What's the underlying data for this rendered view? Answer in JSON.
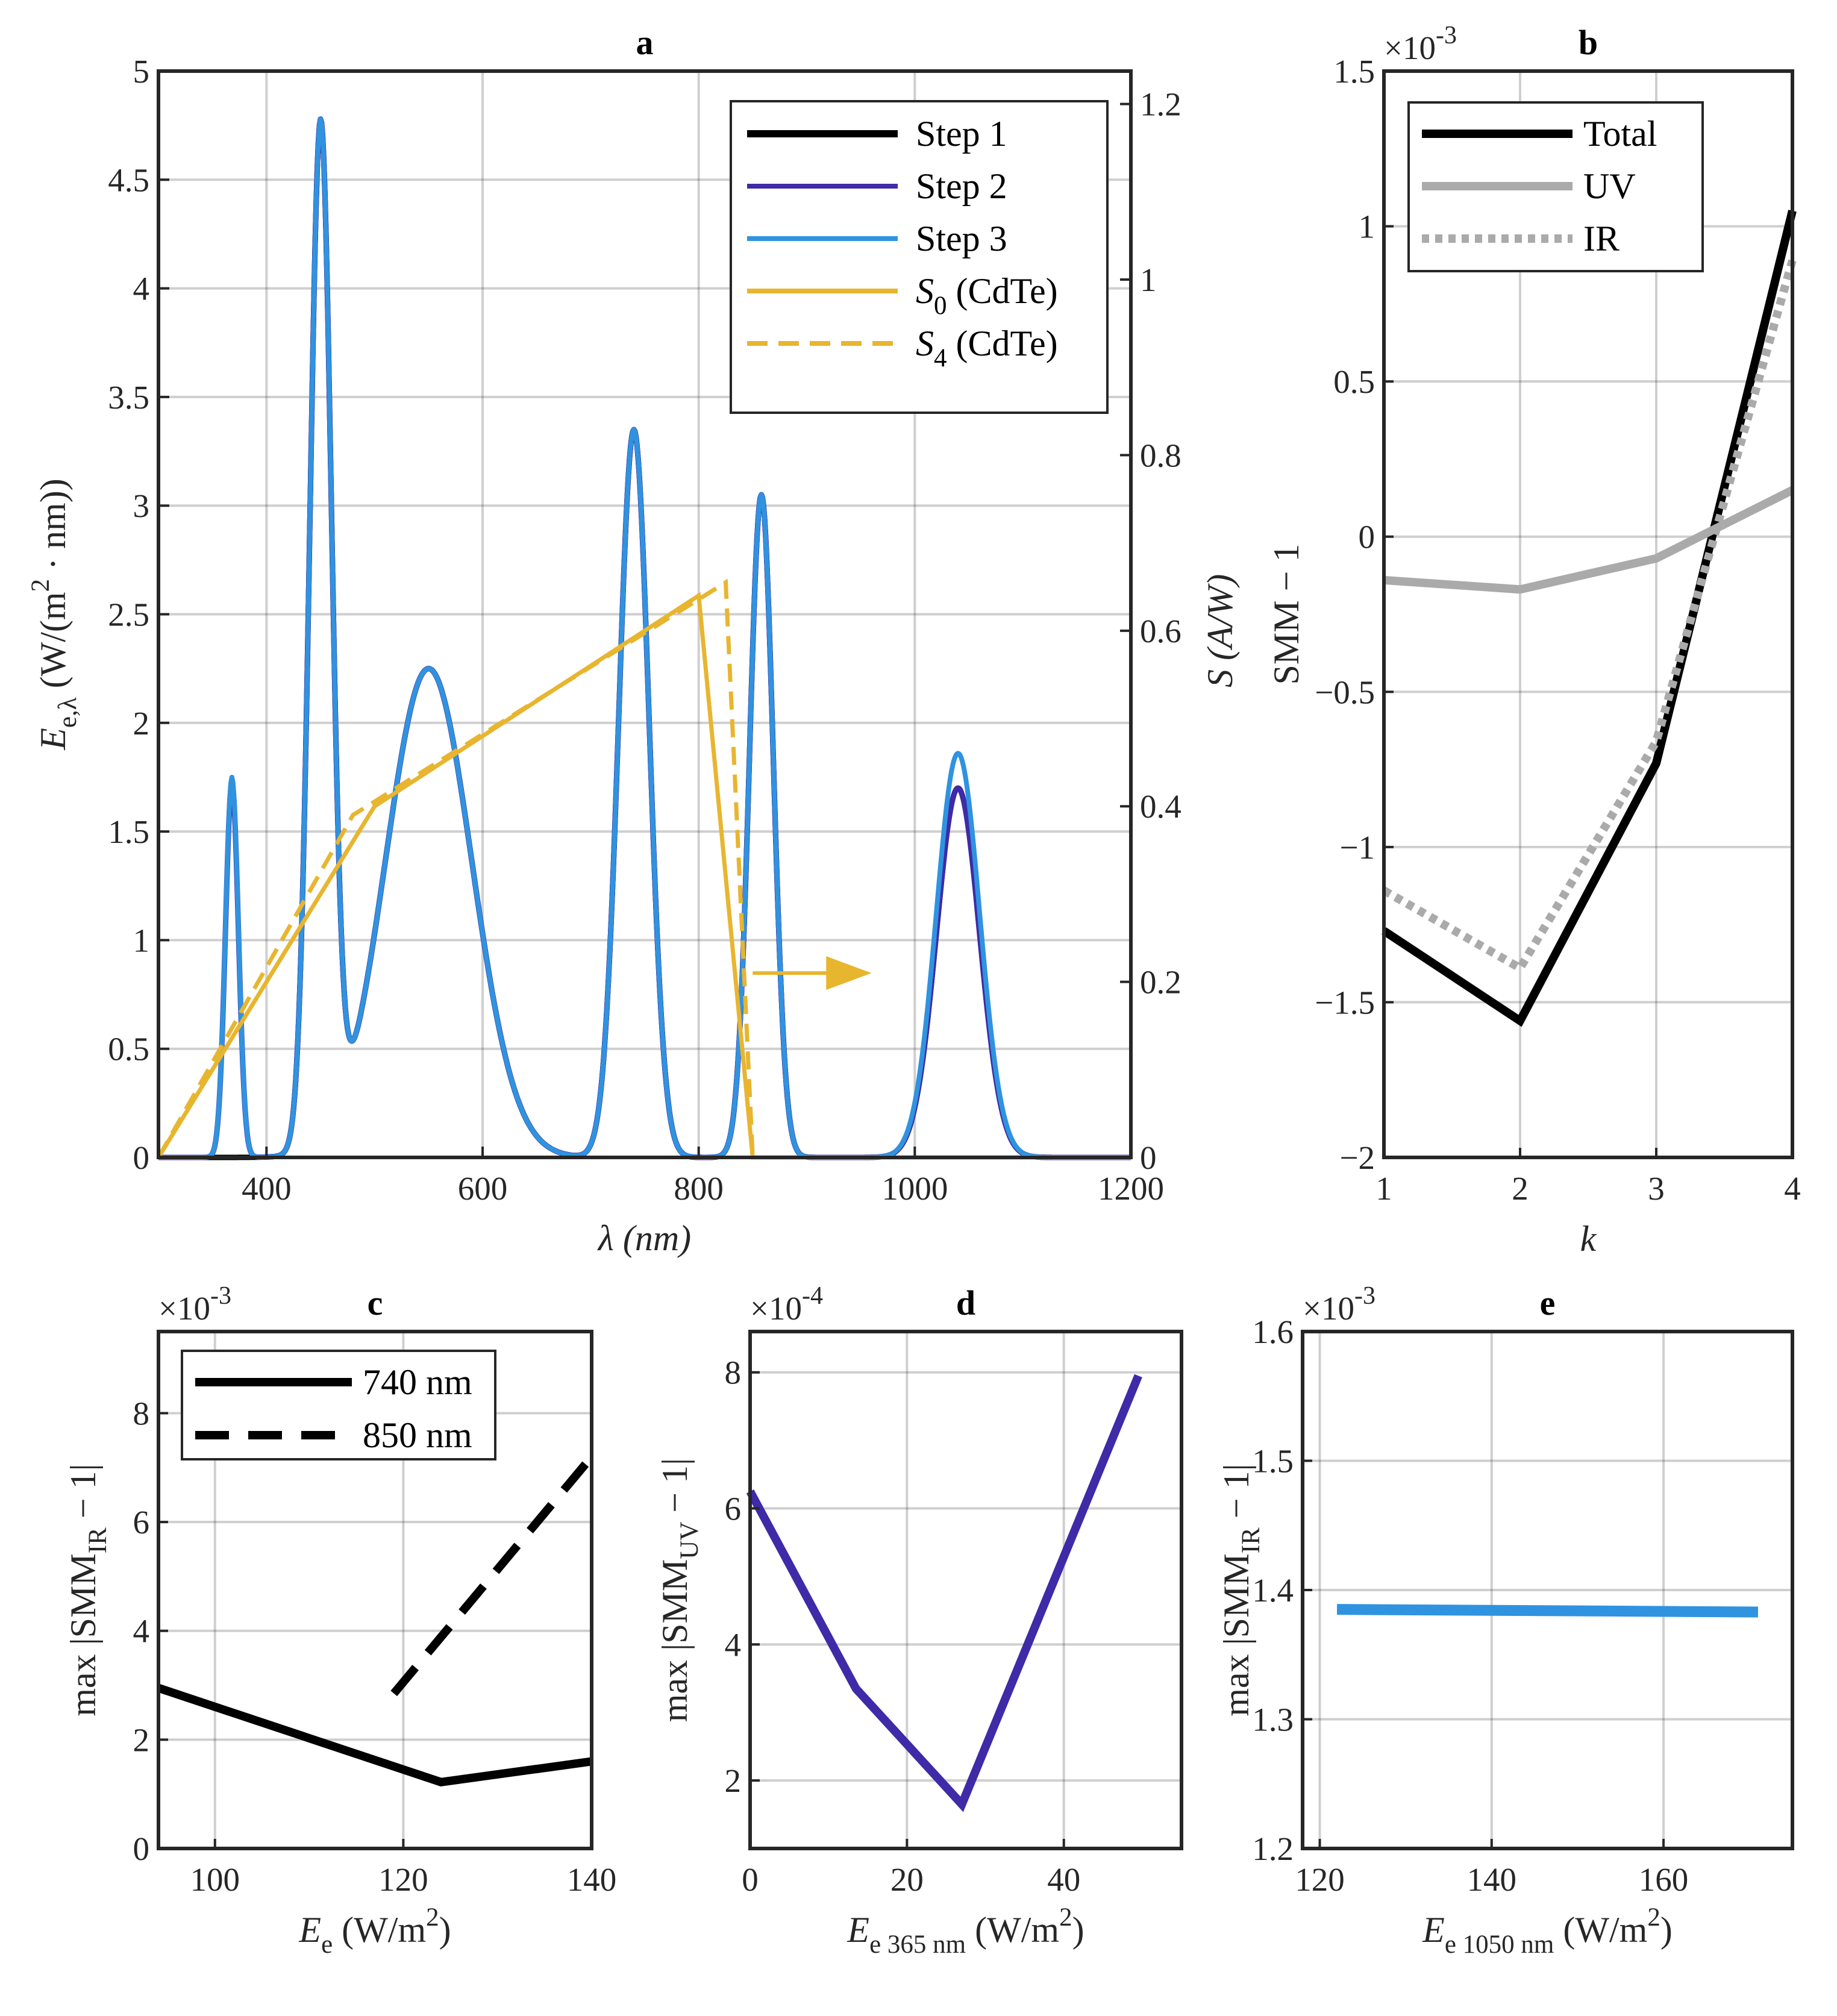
{
  "chart_data": [
    {
      "panel": "a",
      "type": "line",
      "title": "a",
      "xlabel": "λ (nm)",
      "ylabel_left": "E_{e,λ} (W/(m^2 · nm))",
      "ylabel_right": "S (A/W)",
      "xlim": [
        300,
        1200
      ],
      "ylim_left": [
        0,
        5
      ],
      "ylim_right": [
        0,
        1.2375
      ],
      "xticks": [
        "400",
        "600",
        "800",
        "1000",
        "1200"
      ],
      "yticks_left": [
        "0",
        "0.5",
        "1",
        "1.5",
        "2",
        "2.5",
        "3",
        "3.5",
        "4",
        "4.5",
        "5"
      ],
      "yticks_right": [
        "0",
        "0.2",
        "0.4",
        "0.6",
        "0.8",
        "1",
        "1.2"
      ],
      "grid": true,
      "legend": "top-right",
      "legend_entries": [
        "Step 1",
        "Step 2",
        "Step 3",
        "S_0 (CdTe)",
        "S_4 (CdTe)"
      ],
      "colors": {
        "step1": "#000000",
        "step2": "#3f2aa8",
        "step3": "#2f93e0",
        "s": "#e8b52f"
      },
      "peaks": {
        "step1": [
          {
            "center": 450,
            "height": 4.68,
            "width": 10
          },
          {
            "center": 550,
            "height": 2.25,
            "width": 40
          },
          {
            "center": 740,
            "height": 3.35,
            "width": 14
          },
          {
            "center": 858,
            "height": 3.05,
            "width": 11
          },
          {
            "center": 1040,
            "height": 1.7,
            "width": 20
          }
        ],
        "step2": [
          {
            "center": 368,
            "height": 1.73,
            "width": 6
          },
          {
            "center": 450,
            "height": 4.68,
            "width": 10
          },
          {
            "center": 550,
            "height": 2.25,
            "width": 40
          },
          {
            "center": 740,
            "height": 3.35,
            "width": 14
          },
          {
            "center": 858,
            "height": 3.05,
            "width": 11
          },
          {
            "center": 1040,
            "height": 1.7,
            "width": 20
          }
        ],
        "step3": [
          {
            "center": 368,
            "height": 1.75,
            "width": 6
          },
          {
            "center": 450,
            "height": 4.68,
            "width": 10
          },
          {
            "center": 550,
            "height": 2.25,
            "width": 40
          },
          {
            "center": 740,
            "height": 3.35,
            "width": 14
          },
          {
            "center": 858,
            "height": 3.05,
            "width": 11
          },
          {
            "center": 1040,
            "height": 1.86,
            "width": 20
          }
        ]
      },
      "S0": {
        "x": [
          300,
          500,
          800,
          850,
          1200
        ],
        "y": [
          0,
          0.4,
          0.64,
          0,
          0
        ]
      },
      "S4": {
        "x": [
          300,
          480,
          825,
          850,
          1200
        ],
        "y": [
          0,
          0.39,
          0.655,
          0,
          0
        ]
      },
      "annotation": "arrow pointing right toward S axis"
    },
    {
      "panel": "b",
      "type": "line",
      "title": "b",
      "xlabel": "k",
      "ylabel": "SMM − 1",
      "multiplier": "×10^{-3}",
      "xlim": [
        1,
        4
      ],
      "ylim": [
        -2,
        1.5
      ],
      "xticks": [
        "1",
        "2",
        "3",
        "4"
      ],
      "yticks": [
        "−2",
        "−1.5",
        "−1",
        "−0.5",
        "0",
        "0.5",
        "1",
        "1.5"
      ],
      "grid": true,
      "legend": "top-left",
      "x": [
        1,
        2,
        3,
        4
      ],
      "series": [
        {
          "name": "Total",
          "values": [
            -1.27,
            -1.56,
            -0.73,
            1.05
          ],
          "color": "#000000",
          "style": "solid"
        },
        {
          "name": "UV",
          "values": [
            -0.14,
            -0.17,
            -0.07,
            0.15
          ],
          "color": "#aaaaaa",
          "style": "solid"
        },
        {
          "name": "IR",
          "values": [
            -1.14,
            -1.39,
            -0.66,
            0.89
          ],
          "color": "#aaaaaa",
          "style": "dotted"
        }
      ]
    },
    {
      "panel": "c",
      "type": "line",
      "title": "c",
      "xlabel": "E_e (W/m^2)",
      "ylabel": "max |SMM_IR − 1|",
      "multiplier": "×10^{-3}",
      "xlim": [
        94,
        140
      ],
      "ylim": [
        0,
        9.5
      ],
      "xticks": [
        "100",
        "120",
        "140"
      ],
      "yticks": [
        "0",
        "2",
        "4",
        "6",
        "8"
      ],
      "grid": true,
      "legend": "top-left",
      "series": [
        {
          "name": "740 nm",
          "x": [
            94,
            124,
            140
          ],
          "values": [
            2.95,
            1.22,
            1.6
          ],
          "style": "solid"
        },
        {
          "name": "850 nm",
          "x": [
            119,
            140
          ],
          "values": [
            2.85,
            7.2
          ],
          "style": "dashed"
        }
      ]
    },
    {
      "panel": "d",
      "type": "line",
      "title": "d",
      "xlabel": "E_{e 365 nm} (W/m^2)",
      "ylabel": "max |SMM_UV − 1|",
      "multiplier": "×10^{-4}",
      "xlim": [
        0,
        55
      ],
      "ylim": [
        1,
        8.6
      ],
      "xticks": [
        "0",
        "20",
        "40"
      ],
      "yticks": [
        "2",
        "4",
        "6",
        "8"
      ],
      "grid": true,
      "series": [
        {
          "name": "UV",
          "x": [
            0,
            13.5,
            27,
            49.5
          ],
          "values": [
            6.25,
            3.35,
            1.65,
            7.95
          ],
          "color": "#3f2aa8"
        }
      ]
    },
    {
      "panel": "e",
      "type": "line",
      "title": "e",
      "xlabel": "E_{e 1050 nm} (W/m^2)",
      "ylabel": "max |SMM_IR − 1|",
      "multiplier": "×10^{-3}",
      "xlim": [
        118,
        175
      ],
      "ylim": [
        1.2,
        1.6
      ],
      "xticks": [
        "120",
        "140",
        "160"
      ],
      "yticks": [
        "1.2",
        "1.3",
        "1.4",
        "1.5",
        "1.6"
      ],
      "grid": true,
      "series": [
        {
          "name": "IR",
          "x": [
            122,
            171
          ],
          "values": [
            1.385,
            1.383
          ],
          "color": "#2f93e0"
        }
      ]
    }
  ]
}
